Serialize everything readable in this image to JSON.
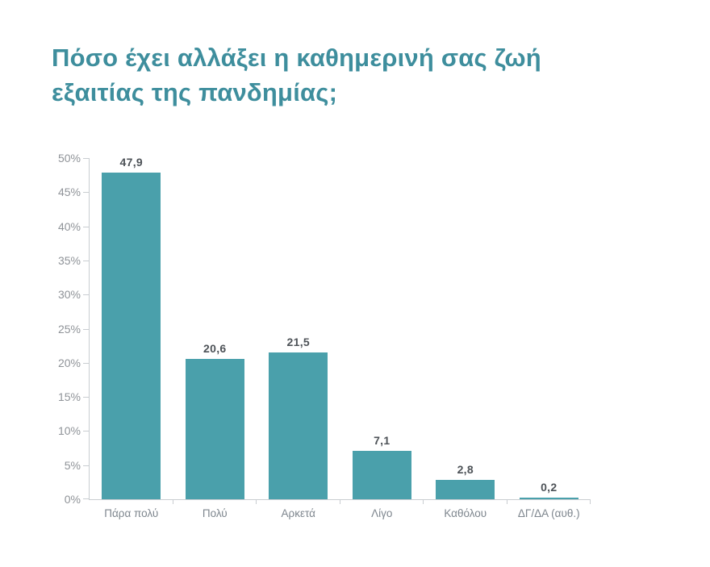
{
  "page": {
    "background": "#ffffff"
  },
  "title": {
    "lines": [
      "Πόσο έχει αλλάξει η καθημερινή σας ζωή",
      "εξαιτίας της πανδημίας;"
    ],
    "full": "Πόσο έχει αλλάξει η καθημερινή σας ζωή εξαιτίας της πανδημίας;",
    "color": "#3e8e9d"
  },
  "chart_data": {
    "type": "bar",
    "title": "Πόσο έχει αλλάξει η καθημερινή σας ζωή εξαιτίας της πανδημίας;",
    "categories": [
      "Πάρα πολύ",
      "Πολύ",
      "Αρκετά",
      "Λίγο",
      "Καθόλου",
      "ΔΓ/ΔΑ (αυθ.)"
    ],
    "values": [
      47.9,
      20.6,
      21.5,
      7.1,
      2.8,
      0.2
    ],
    "value_labels": [
      "47,9",
      "20,6",
      "21,5",
      "7,1",
      "2,8",
      "0,2"
    ],
    "xlabel": "",
    "ylabel": "",
    "ylim": [
      0,
      50
    ],
    "y_ticks": [
      0,
      5,
      10,
      15,
      20,
      25,
      30,
      35,
      40,
      45,
      50
    ],
    "y_tick_labels": [
      "0%",
      "5%",
      "10%",
      "15%",
      "20%",
      "25%",
      "30%",
      "35%",
      "40%",
      "45%",
      "50%"
    ],
    "grid": false,
    "legend": false,
    "bar_color": "#4aa0ab",
    "value_label_color": "#4d5257",
    "axis_color": "#c9cdd1",
    "y_tick_label_color": "#8f9398",
    "category_label_color": "#7e868e"
  }
}
